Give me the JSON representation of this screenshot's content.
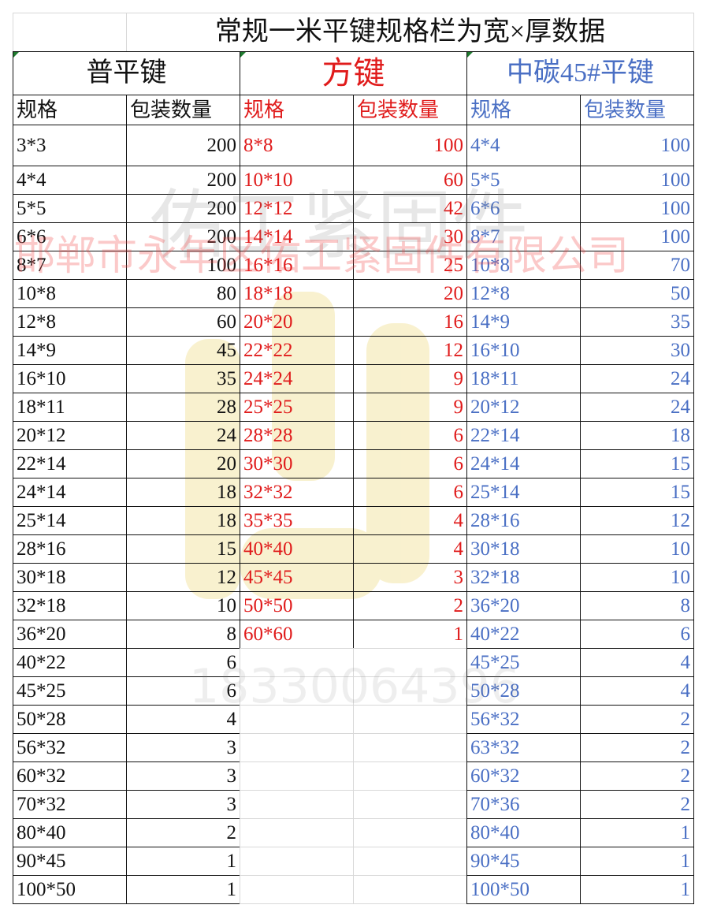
{
  "title": "常规一米平键规格栏为宽×厚数据",
  "colors": {
    "col1": "#111111",
    "col2": "#e01b1b",
    "col3": "#4a6fc4"
  },
  "sections": [
    {
      "name": "普平键",
      "headers": [
        "规格",
        "包装数量"
      ],
      "rows": [
        [
          "3*3",
          "200"
        ],
        [
          "4*4",
          "200"
        ],
        [
          "5*5",
          "200"
        ],
        [
          "6*6",
          "200"
        ],
        [
          "8*7",
          "100"
        ],
        [
          "10*8",
          "80"
        ],
        [
          "12*8",
          "60"
        ],
        [
          "14*9",
          "45"
        ],
        [
          "16*10",
          "35"
        ],
        [
          "18*11",
          "28"
        ],
        [
          "20*12",
          "24"
        ],
        [
          "22*14",
          "20"
        ],
        [
          "24*14",
          "18"
        ],
        [
          "25*14",
          "18"
        ],
        [
          "28*16",
          "15"
        ],
        [
          "30*18",
          "12"
        ],
        [
          "32*18",
          "10"
        ],
        [
          "36*20",
          "8"
        ],
        [
          "40*22",
          "6"
        ],
        [
          "45*25",
          "6"
        ],
        [
          "50*28",
          "4"
        ],
        [
          "56*32",
          "3"
        ],
        [
          "60*32",
          "3"
        ],
        [
          "70*32",
          "3"
        ],
        [
          "80*40",
          "2"
        ],
        [
          "90*45",
          "1"
        ],
        [
          "100*50",
          "1"
        ]
      ]
    },
    {
      "name": "方键",
      "headers": [
        "规格",
        "包装数量"
      ],
      "rows": [
        [
          "8*8",
          "100"
        ],
        [
          "10*10",
          "60"
        ],
        [
          "12*12",
          "42"
        ],
        [
          "14*14",
          "30"
        ],
        [
          "16*16",
          "25"
        ],
        [
          "18*18",
          "20"
        ],
        [
          "20*20",
          "16"
        ],
        [
          "22*22",
          "12"
        ],
        [
          "24*24",
          "9"
        ],
        [
          "25*25",
          "9"
        ],
        [
          "28*28",
          "6"
        ],
        [
          "30*30",
          "6"
        ],
        [
          "32*32",
          "6"
        ],
        [
          "35*35",
          "4"
        ],
        [
          "40*40",
          "4"
        ],
        [
          "45*45",
          "3"
        ],
        [
          "50*50",
          "2"
        ],
        [
          "60*60",
          "1"
        ]
      ]
    },
    {
      "name": "中碳45#平键",
      "headers": [
        "规格",
        "包装数量"
      ],
      "rows": [
        [
          "4*4",
          "100"
        ],
        [
          "5*5",
          "100"
        ],
        [
          "6*6",
          "100"
        ],
        [
          "8*7",
          "100"
        ],
        [
          "10*8",
          "70"
        ],
        [
          "12*8",
          "50"
        ],
        [
          "14*9",
          "35"
        ],
        [
          "16*10",
          "30"
        ],
        [
          "18*11",
          "24"
        ],
        [
          "20*12",
          "24"
        ],
        [
          "22*14",
          "18"
        ],
        [
          "24*14",
          "15"
        ],
        [
          "25*14",
          "15"
        ],
        [
          "28*16",
          "12"
        ],
        [
          "30*18",
          "10"
        ],
        [
          "32*18",
          "10"
        ],
        [
          "36*20",
          "8"
        ],
        [
          "40*22",
          "6"
        ],
        [
          "45*25",
          "4"
        ],
        [
          "50*28",
          "4"
        ],
        [
          "56*32",
          "2"
        ],
        [
          "63*32",
          "2"
        ],
        [
          "60*32",
          "2"
        ],
        [
          "70*36",
          "2"
        ],
        [
          "80*40",
          "1"
        ],
        [
          "90*45",
          "1"
        ],
        [
          "100*50",
          "1"
        ]
      ]
    }
  ],
  "watermarks": {
    "brand": "佑工紧固件",
    "company": "邯郸市永年区佑工紧固件有限公司",
    "phone": "18330064396"
  }
}
